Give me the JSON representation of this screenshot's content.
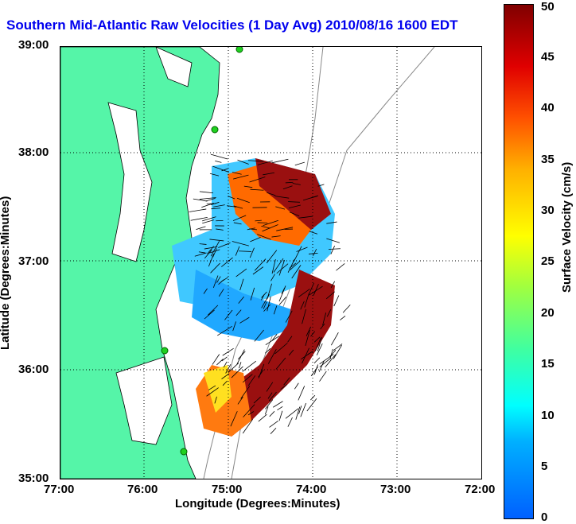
{
  "title": "Southern Mid-Atlantic Raw Velocities (1 Day Avg) 2010/08/16 1600 EDT",
  "map": {
    "xlabel": "Longitude (Degrees:Minutes)",
    "ylabel": "Latitude (Degrees:Minutes)",
    "x_ticks": [
      "77:00",
      "76:00",
      "75:00",
      "74:00",
      "73:00",
      "72:00"
    ],
    "y_ticks": [
      "39:00",
      "38:00",
      "37:00",
      "36:00",
      "35:00"
    ],
    "land_color": "#55f5a8",
    "grid": "dotted"
  },
  "colorbar": {
    "label": "Surface Velocity (cm/s)",
    "ticks": [
      "50",
      "45",
      "40",
      "35",
      "30",
      "25",
      "20",
      "15",
      "10",
      "5",
      "0"
    ],
    "range": [
      0,
      50
    ],
    "colormap": [
      "#0060ff",
      "#00ffff",
      "#a0ff40",
      "#ffff00",
      "#ff5000",
      "#800000"
    ]
  }
}
